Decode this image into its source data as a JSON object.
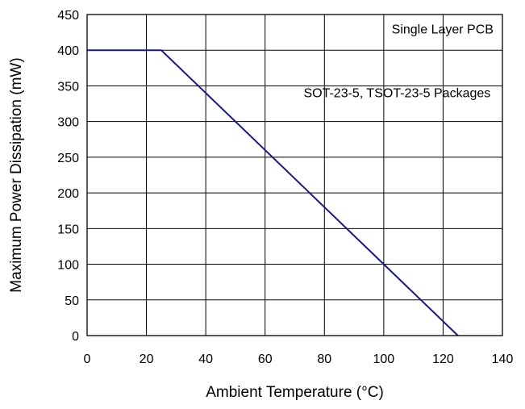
{
  "chart_data": {
    "type": "line",
    "title": "",
    "xlabel": "Ambient Temperature (°C)",
    "ylabel": "Maximum Power Dissipation (mW)",
    "xlim": [
      0,
      140
    ],
    "ylim": [
      0,
      450
    ],
    "x_ticks": [
      0,
      20,
      40,
      60,
      80,
      100,
      120,
      140
    ],
    "y_ticks": [
      0,
      50,
      100,
      150,
      200,
      250,
      300,
      350,
      400,
      450
    ],
    "x_tick_labels": [
      "0",
      "20",
      "40",
      "60",
      "80",
      "100",
      "120",
      "140"
    ],
    "y_tick_labels": [
      "0",
      "50",
      "100",
      "150",
      "200",
      "250",
      "300",
      "350",
      "400",
      "450"
    ],
    "grid": true,
    "series": [
      {
        "color": "#1a1a7e",
        "points": [
          {
            "x": 0,
            "y": 400
          },
          {
            "x": 25,
            "y": 400
          },
          {
            "x": 125,
            "y": 0
          }
        ]
      }
    ],
    "annotations": [
      {
        "text": "Single Layer PCB",
        "x": 137,
        "y": 430,
        "anchor": "end"
      },
      {
        "text": "SOT-23-5, TSOT-23-5 Packages",
        "x": 136,
        "y": 341,
        "anchor": "end"
      }
    ]
  }
}
